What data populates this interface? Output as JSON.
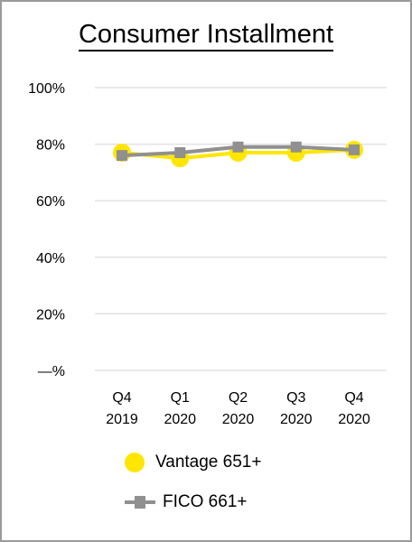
{
  "chart_data": {
    "type": "line",
    "title": "Consumer Installment",
    "categories": [
      "Q4 2019",
      "Q1 2020",
      "Q2 2020",
      "Q3 2020",
      "Q4 2020"
    ],
    "category_lines": [
      [
        "Q4",
        "2019"
      ],
      [
        "Q1",
        "2020"
      ],
      [
        "Q2",
        "2020"
      ],
      [
        "Q3",
        "2020"
      ],
      [
        "Q4",
        "2020"
      ]
    ],
    "y_ticks": [
      0,
      20,
      40,
      60,
      80,
      100
    ],
    "y_tick_labels": [
      "—%",
      "20%",
      "40%",
      "60%",
      "80%",
      "100%"
    ],
    "ylim": [
      0,
      100
    ],
    "grid": true,
    "legend_position": "bottom",
    "series": [
      {
        "name": "Vantage 651+",
        "color": "#ffe600",
        "marker": "circle",
        "values": [
          77,
          75,
          77,
          77,
          78
        ]
      },
      {
        "name": "FICO 661+",
        "color": "#909090",
        "marker": "square",
        "values": [
          76,
          77,
          79,
          79,
          78
        ]
      }
    ]
  }
}
